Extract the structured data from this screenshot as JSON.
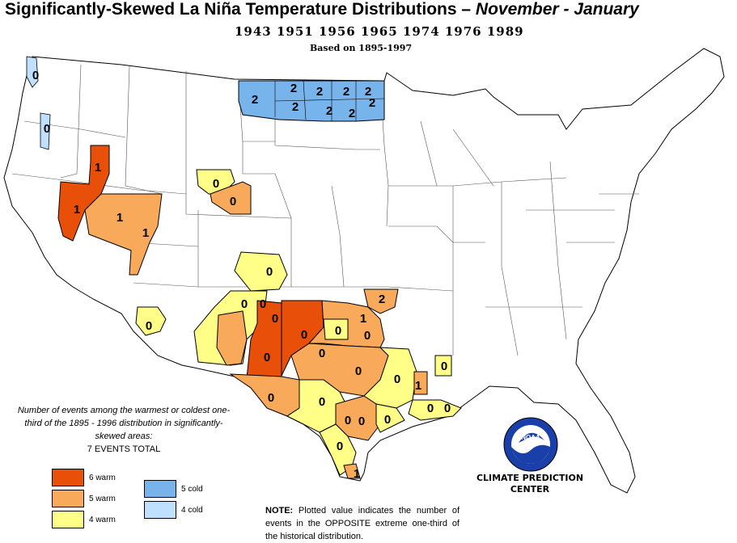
{
  "title": {
    "main": "Significantly-Skewed La Niña Temperature Distributions  –",
    "period": " November - January"
  },
  "years": "1943 1951 1956 1965 1974 1976 1989",
  "based_on": "Based on 1895-1997",
  "colors": {
    "6_warm": "#e8500a",
    "5_warm": "#f8aa5a",
    "4_warm": "#ffff88",
    "5_cold": "#78b4ec",
    "4_cold": "#c0e0ff"
  },
  "regions": [
    {
      "category": "4_cold",
      "value": "0"
    },
    {
      "category": "4_cold",
      "value": "0"
    },
    {
      "category": "5_cold",
      "value": "2"
    },
    {
      "category": "5_cold",
      "value": "2"
    },
    {
      "category": "5_cold",
      "value": "2"
    },
    {
      "category": "5_cold",
      "value": "2"
    },
    {
      "category": "5_cold",
      "value": "2"
    },
    {
      "category": "5_cold",
      "value": "2"
    },
    {
      "category": "5_cold",
      "value": "2"
    },
    {
      "category": "5_cold",
      "value": "2"
    },
    {
      "category": "5_cold",
      "value": "2"
    },
    {
      "category": "6_warm",
      "value": "1"
    },
    {
      "category": "6_warm",
      "value": "1"
    },
    {
      "category": "5_warm",
      "value": "1"
    },
    {
      "category": "5_warm",
      "value": "1"
    },
    {
      "category": "4_warm",
      "value": "0"
    },
    {
      "category": "5_warm",
      "value": "0"
    },
    {
      "category": "4_warm",
      "value": "0"
    },
    {
      "category": "4_warm",
      "value": "0"
    },
    {
      "category": "4_warm",
      "value": "0"
    },
    {
      "category": "6_warm",
      "value": "0"
    },
    {
      "category": "6_warm",
      "value": "0"
    },
    {
      "category": "6_warm",
      "value": "0"
    },
    {
      "category": "4_warm",
      "value": "0"
    },
    {
      "category": "5_warm",
      "value": "2"
    },
    {
      "category": "5_warm",
      "value": "1"
    },
    {
      "category": "4_warm",
      "value": "0"
    },
    {
      "category": "5_warm",
      "value": "0"
    },
    {
      "category": "5_warm",
      "value": "0"
    },
    {
      "category": "5_warm",
      "value": "0"
    },
    {
      "category": "4_warm",
      "value": "0"
    },
    {
      "category": "5_warm",
      "value": "1"
    },
    {
      "category": "4_warm",
      "value": "0"
    },
    {
      "category": "5_warm",
      "value": "0"
    },
    {
      "category": "4_warm",
      "value": "0"
    },
    {
      "category": "5_warm",
      "value": "0"
    },
    {
      "category": "4_warm",
      "value": "0"
    },
    {
      "category": "4_warm",
      "value": "0"
    },
    {
      "category": "4_warm",
      "value": "0"
    },
    {
      "category": "4_warm",
      "value": "0"
    },
    {
      "category": "5_warm",
      "value": "1"
    },
    {
      "category": "4_warm",
      "value": "0"
    }
  ],
  "legend": {
    "description": "Number of events among the warmest or coldest one-third of the 1895 - 1996 distribution in significantly-skewed areas:",
    "total": "7 EVENTS TOTAL",
    "items": [
      {
        "label": "6 warm",
        "color": "#e8500a"
      },
      {
        "label": "5 warm",
        "color": "#f8aa5a"
      },
      {
        "label": "4 warm",
        "color": "#ffff88"
      },
      {
        "label": "5 cold",
        "color": "#78b4ec"
      },
      {
        "label": "4 cold",
        "color": "#c0e0ff"
      }
    ]
  },
  "logo": {
    "text": "NOAA"
  },
  "cpc": {
    "line1": "CLIMATE PREDICTION",
    "line2": "CENTER"
  },
  "note": {
    "label": "NOTE:",
    "text": " Plotted value indicates the number of events in the OPPOSITE extreme one-third of the historical distribution."
  }
}
